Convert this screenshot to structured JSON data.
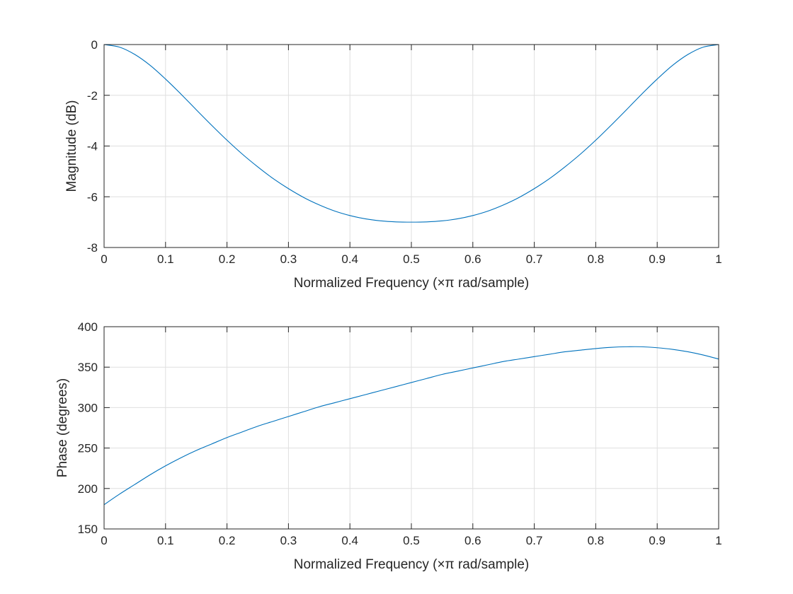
{
  "chart_data": [
    {
      "type": "line",
      "xlabel": "Normalized Frequency  (×π rad/sample)",
      "ylabel": "Magnitude (dB)",
      "xlim": [
        0,
        1
      ],
      "ylim": [
        -8,
        0
      ],
      "xticks": [
        0,
        0.1,
        0.2,
        0.3,
        0.4,
        0.5,
        0.6,
        0.7,
        0.8,
        0.9,
        1
      ],
      "xtick_labels": [
        "0",
        "0.1",
        "0.2",
        "0.3",
        "0.4",
        "0.5",
        "0.6",
        "0.7",
        "0.8",
        "0.9",
        "1"
      ],
      "yticks": [
        -8,
        -6,
        -4,
        -2,
        0
      ],
      "ytick_labels": [
        "-8",
        "-6",
        "-4",
        "-2",
        "0"
      ],
      "grid": true,
      "line_color": "#0072BD",
      "series": [
        {
          "x": [
            0,
            0.025,
            0.05,
            0.075,
            0.1,
            0.125,
            0.15,
            0.175,
            0.2,
            0.225,
            0.25,
            0.275,
            0.3,
            0.325,
            0.35,
            0.375,
            0.4,
            0.425,
            0.45,
            0.475,
            0.5,
            0.525,
            0.55,
            0.575,
            0.6,
            0.625,
            0.65,
            0.675,
            0.7,
            0.725,
            0.75,
            0.775,
            0.8,
            0.825,
            0.85,
            0.875,
            0.9,
            0.925,
            0.95,
            0.975,
            1
          ],
          "y": [
            0,
            -0.1,
            -0.39,
            -0.82,
            -1.36,
            -1.95,
            -2.57,
            -3.18,
            -3.77,
            -4.32,
            -4.82,
            -5.28,
            -5.68,
            -6.03,
            -6.32,
            -6.56,
            -6.74,
            -6.87,
            -6.95,
            -6.99,
            -7.0,
            -6.99,
            -6.95,
            -6.87,
            -6.74,
            -6.56,
            -6.32,
            -6.03,
            -5.68,
            -5.28,
            -4.82,
            -4.32,
            -3.77,
            -3.18,
            -2.57,
            -1.95,
            -1.36,
            -0.82,
            -0.39,
            -0.1,
            0
          ]
        }
      ]
    },
    {
      "type": "line",
      "xlabel": "Normalized Frequency  (×π rad/sample)",
      "ylabel": "Phase (degrees)",
      "xlim": [
        0,
        1
      ],
      "ylim": [
        150,
        400
      ],
      "xticks": [
        0,
        0.1,
        0.2,
        0.3,
        0.4,
        0.5,
        0.6,
        0.7,
        0.8,
        0.9,
        1
      ],
      "xtick_labels": [
        "0",
        "0.1",
        "0.2",
        "0.3",
        "0.4",
        "0.5",
        "0.6",
        "0.7",
        "0.8",
        "0.9",
        "1"
      ],
      "yticks": [
        150,
        200,
        250,
        300,
        350,
        400
      ],
      "ytick_labels": [
        "150",
        "200",
        "250",
        "300",
        "350",
        "400"
      ],
      "grid": true,
      "line_color": "#0072BD",
      "series": [
        {
          "x": [
            0,
            0.025,
            0.05,
            0.075,
            0.1,
            0.125,
            0.15,
            0.175,
            0.2,
            0.225,
            0.25,
            0.275,
            0.3,
            0.325,
            0.35,
            0.375,
            0.4,
            0.425,
            0.45,
            0.475,
            0.5,
            0.525,
            0.55,
            0.575,
            0.6,
            0.625,
            0.65,
            0.675,
            0.7,
            0.725,
            0.75,
            0.775,
            0.8,
            0.825,
            0.85,
            0.875,
            0.9,
            0.925,
            0.95,
            0.975,
            1
          ],
          "y": [
            180,
            193,
            205,
            217,
            228,
            238,
            247,
            255,
            263,
            270,
            277,
            283,
            289,
            295,
            301,
            306,
            311,
            316,
            321,
            326,
            331,
            336,
            341,
            345,
            349,
            353,
            357,
            360,
            363,
            366,
            369,
            371,
            373,
            374.5,
            375.2,
            375.2,
            374,
            372,
            369,
            365,
            360
          ]
        }
      ]
    }
  ]
}
